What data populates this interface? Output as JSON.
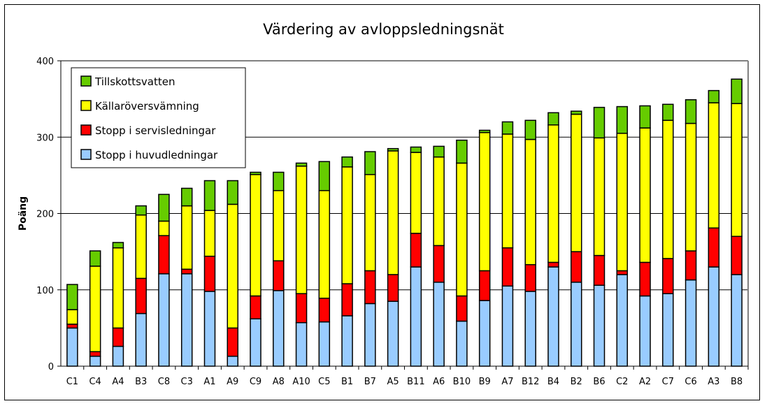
{
  "chart_data": {
    "type": "bar",
    "stacked": true,
    "title": "Värdering av avloppsledningsnät",
    "ylabel": "Poäng",
    "xlabel": "",
    "ylim": [
      0,
      400
    ],
    "yticks": [
      0,
      100,
      200,
      300,
      400
    ],
    "grid": true,
    "legend_position": "top-left",
    "categories": [
      "C1",
      "C4",
      "A4",
      "B3",
      "C8",
      "C3",
      "A1",
      "A9",
      "C9",
      "A8",
      "A10",
      "C5",
      "B1",
      "B7",
      "A5",
      "B11",
      "A6",
      "B10",
      "B9",
      "A7",
      "B12",
      "B4",
      "B2",
      "B6",
      "C2",
      "A2",
      "C7",
      "C6",
      "A3",
      "B8"
    ],
    "series": [
      {
        "name": "Stopp i huvudledningar",
        "color": "#99ccff",
        "values": [
          50,
          13,
          26,
          69,
          121,
          121,
          98,
          13,
          62,
          99,
          57,
          58,
          66,
          82,
          85,
          130,
          110,
          59,
          86,
          105,
          98,
          130,
          110,
          106,
          120,
          92,
          95,
          113,
          130,
          120
        ]
      },
      {
        "name": "Stopp i servisledningar",
        "color": "#ff0000",
        "values": [
          5,
          6,
          24,
          46,
          50,
          6,
          46,
          37,
          30,
          39,
          38,
          31,
          42,
          43,
          35,
          44,
          48,
          33,
          39,
          50,
          35,
          6,
          40,
          39,
          5,
          44,
          46,
          38,
          51,
          50
        ]
      },
      {
        "name": "Källaröversvämning",
        "color": "#ffff00",
        "values": [
          19,
          112,
          105,
          83,
          19,
          83,
          60,
          162,
          159,
          92,
          167,
          141,
          153,
          126,
          162,
          106,
          116,
          174,
          181,
          149,
          164,
          180,
          180,
          154,
          180,
          176,
          181,
          167,
          164,
          174
        ]
      },
      {
        "name": "Tillskottsvatten",
        "color": "#66cc00",
        "values": [
          33,
          20,
          7,
          12,
          35,
          23,
          39,
          31,
          3,
          24,
          4,
          38,
          13,
          30,
          3,
          7,
          14,
          30,
          3,
          16,
          25,
          16,
          4,
          40,
          35,
          29,
          21,
          31,
          16,
          32
        ]
      }
    ]
  }
}
